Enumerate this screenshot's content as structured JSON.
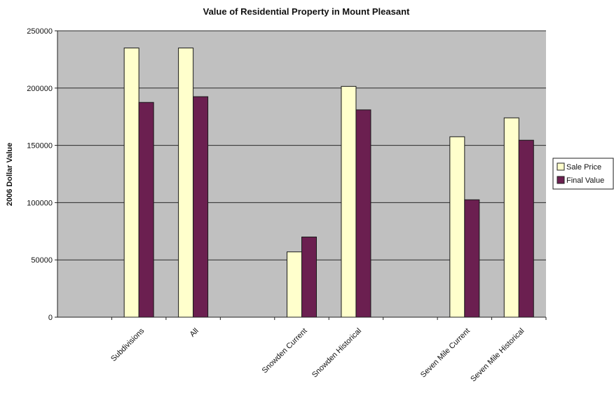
{
  "chart_data": {
    "type": "bar",
    "title": "Value of Residential Property in Mount Pleasant",
    "xlabel": "",
    "ylabel": "2006 Dollar Value",
    "ylim": [
      0,
      250000
    ],
    "yticks": [
      "0",
      "50000",
      "100000",
      "150000",
      "200000",
      "250000"
    ],
    "categories": [
      "",
      "Subdivisions",
      "All",
      "",
      "Snowden Current",
      "Snowden Historical",
      "",
      "Seven Mile Current",
      "Seven Mile Historical"
    ],
    "series": [
      {
        "name": "Sale Price",
        "values": [
          null,
          235000,
          235000,
          null,
          57000,
          201500,
          null,
          157500,
          174000
        ]
      },
      {
        "name": "Final Value",
        "values": [
          null,
          187500,
          192500,
          null,
          70000,
          181000,
          null,
          102500,
          154500
        ]
      }
    ],
    "grid": true,
    "legend_position": "right",
    "colors": {
      "plot_background": "#c0c0c0",
      "gridline": "#2a2a2a",
      "sale_price": "#ffffcc",
      "final_value": "#6b1f50",
      "bar_edge": "#1a1a1a"
    }
  }
}
